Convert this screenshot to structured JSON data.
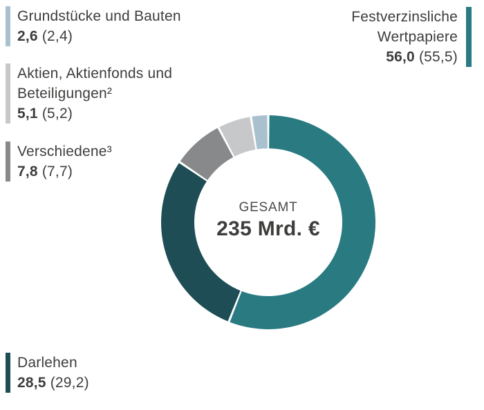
{
  "chart_data": {
    "type": "pie",
    "subtype": "donut",
    "title": "",
    "center_label": "GESAMT",
    "center_value": "235 Mrd. €",
    "unit": "Mrd. €",
    "total": 235,
    "start_angle_deg": 0,
    "direction": "clockwise",
    "legend_position": "around",
    "segments": [
      {
        "id": "festverzinsliche",
        "label": "Festverzinsliche Wertpapiere",
        "value": 56.0,
        "prev_value": 55.5,
        "color": "#2a7a82"
      },
      {
        "id": "darlehen",
        "label": "Darlehen",
        "value": 28.5,
        "prev_value": 29.2,
        "color": "#1e4d55"
      },
      {
        "id": "verschiedene",
        "label": "Verschiedene",
        "footnote": "3",
        "value": 7.8,
        "prev_value": 7.7,
        "color": "#87898a"
      },
      {
        "id": "aktien",
        "label": "Aktien, Aktienfonds und Beteiligungen",
        "footnote": "2",
        "value": 5.1,
        "prev_value": 5.2,
        "color": "#c7c8c9"
      },
      {
        "id": "grundstuecke",
        "label": "Grundstücke und Bauten",
        "value": 2.6,
        "prev_value": 2.4,
        "color": "#a9c1ce"
      }
    ]
  },
  "center": {
    "label": "GESAMT",
    "value": "235 Mrd. €"
  },
  "legend": {
    "grundstuecke": {
      "line1": "Grundstücke und Bauten",
      "value": "2,6",
      "prev": "(2,4)",
      "color": "#a9c1ce"
    },
    "aktien": {
      "line1": "Aktien, Aktienfonds und",
      "line2": "Beteiligungen²",
      "value": "5,1",
      "prev": "(5,2)",
      "color": "#c7c8c9"
    },
    "verschiedene": {
      "line1": "Verschiedene³",
      "value": "7,8",
      "prev": "(7,7)",
      "color": "#87898a"
    },
    "festverzinsliche": {
      "line1": "Festverzinsliche",
      "line2": "Wertpapiere",
      "value": "56,0",
      "prev": "(55,5)",
      "color": "#2a7a82"
    },
    "darlehen": {
      "line1": "Darlehen",
      "value": "28,5",
      "prev": "(29,2)",
      "color": "#1e4d55"
    }
  }
}
